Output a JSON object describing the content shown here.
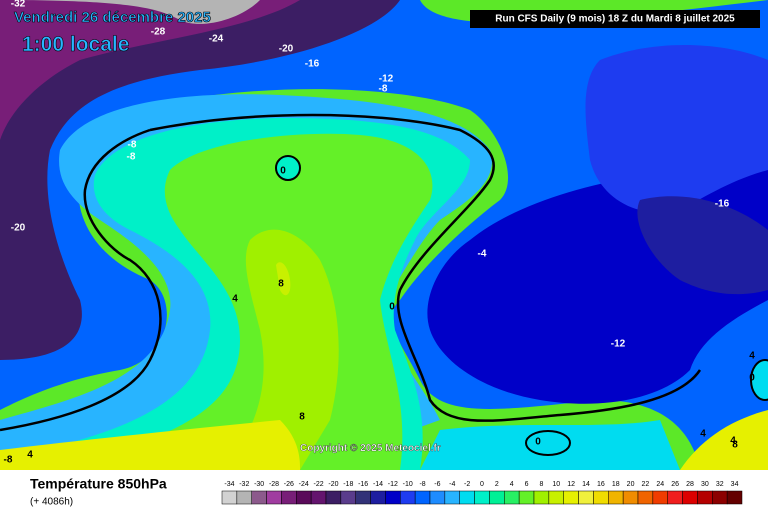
{
  "header": {
    "date": "Vendredi 26 décembre 2025",
    "time": "1:00 locale",
    "run": "Run CFS Daily (9 mois) 18 Z du Mardi 8 juillet 2025"
  },
  "map": {
    "contour_labels": [
      -32,
      -28,
      -24,
      -20,
      -16,
      -12,
      -8,
      -8,
      -8,
      0,
      -20,
      4,
      8,
      0,
      -4,
      -16,
      -12,
      4,
      0,
      8,
      0,
      4,
      4,
      -8,
      4,
      8
    ],
    "copyright": "Copyright © 2025 Meteociel.fr"
  },
  "footer": {
    "title": "Température 850hPa",
    "lead": "(+ 4086h)"
  },
  "legend": {
    "values": [
      -34,
      -32,
      -30,
      -28,
      -26,
      -24,
      -22,
      -20,
      -18,
      -16,
      -14,
      -12,
      -10,
      -8,
      -6,
      -4,
      -2,
      0,
      2,
      4,
      6,
      8,
      10,
      12,
      14,
      16,
      18,
      20,
      22,
      24,
      26,
      28,
      30,
      32,
      34
    ],
    "colors": [
      "#d2d2d2",
      "#b4b4b4",
      "#8c5a8c",
      "#a03ca0",
      "#781e78",
      "#5a0a5a",
      "#64146e",
      "#3c1e64",
      "#5a3c8c",
      "#323278",
      "#1e1ea0",
      "#0000c8",
      "#1e3cf0",
      "#0064ff",
      "#1e8cff",
      "#28b4ff",
      "#00dcf0",
      "#00f0c8",
      "#00f096",
      "#28f064",
      "#64f028",
      "#a0f000",
      "#c8f000",
      "#e6f000",
      "#f0f03c",
      "#f0dc00",
      "#f0b400",
      "#f08c00",
      "#f06400",
      "#f03c00",
      "#f01e1e",
      "#dc0000",
      "#b40000",
      "#8c0000",
      "#640000"
    ]
  }
}
